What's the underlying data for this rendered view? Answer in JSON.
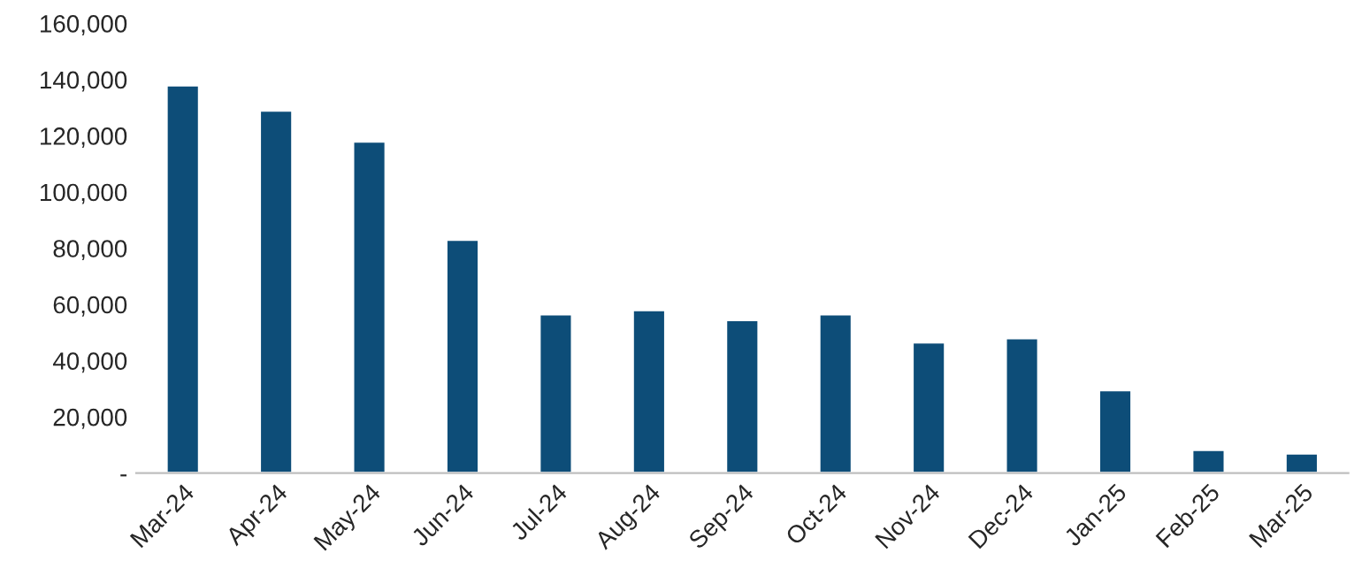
{
  "chart_data": {
    "type": "bar",
    "categories": [
      "Mar-24",
      "Apr-24",
      "May-24",
      "Jun-24",
      "Jul-24",
      "Aug-24",
      "Sep-24",
      "Oct-24",
      "Nov-24",
      "Dec-24",
      "Jan-25",
      "Feb-25",
      "Mar-25"
    ],
    "values": [
      138000,
      129000,
      118000,
      83000,
      56500,
      58000,
      54500,
      56500,
      46500,
      48000,
      29500,
      8300,
      7000
    ],
    "color": "#0d4d78",
    "ylim": [
      0,
      160000
    ],
    "yticks": [
      {
        "value": 0,
        "label": "-"
      },
      {
        "value": 20000,
        "label": "20,000"
      },
      {
        "value": 40000,
        "label": "40,000"
      },
      {
        "value": 60000,
        "label": "60,000"
      },
      {
        "value": 80000,
        "label": "80,000"
      },
      {
        "value": 100000,
        "label": "100,000"
      },
      {
        "value": 120000,
        "label": "120,000"
      },
      {
        "value": 140000,
        "label": "140,000"
      },
      {
        "value": 160000,
        "label": "160,000"
      }
    ],
    "grid": false
  }
}
